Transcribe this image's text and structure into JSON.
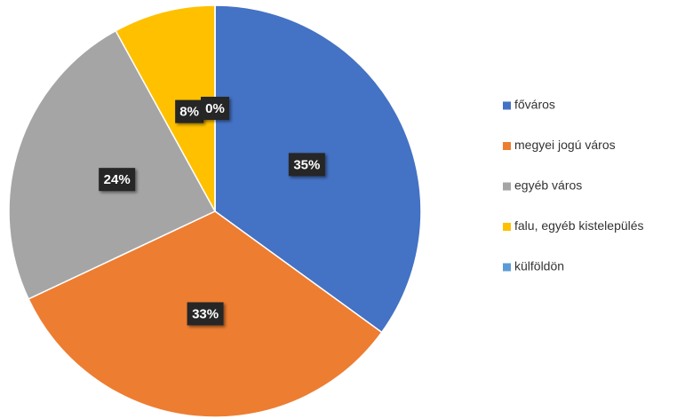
{
  "chart_data": {
    "type": "pie",
    "categories": [
      "főváros",
      "megyei jogú város",
      "egyéb város",
      "falu, egyéb kistelepülés",
      "külföldön"
    ],
    "values": [
      35,
      33,
      24,
      8,
      0
    ],
    "value_labels": [
      "35%",
      "33%",
      "24%",
      "8%",
      "0%"
    ],
    "colors": [
      "#4472c4",
      "#ed7d31",
      "#a5a5a5",
      "#ffc000",
      "#5b9bd5"
    ],
    "legend": "right"
  }
}
